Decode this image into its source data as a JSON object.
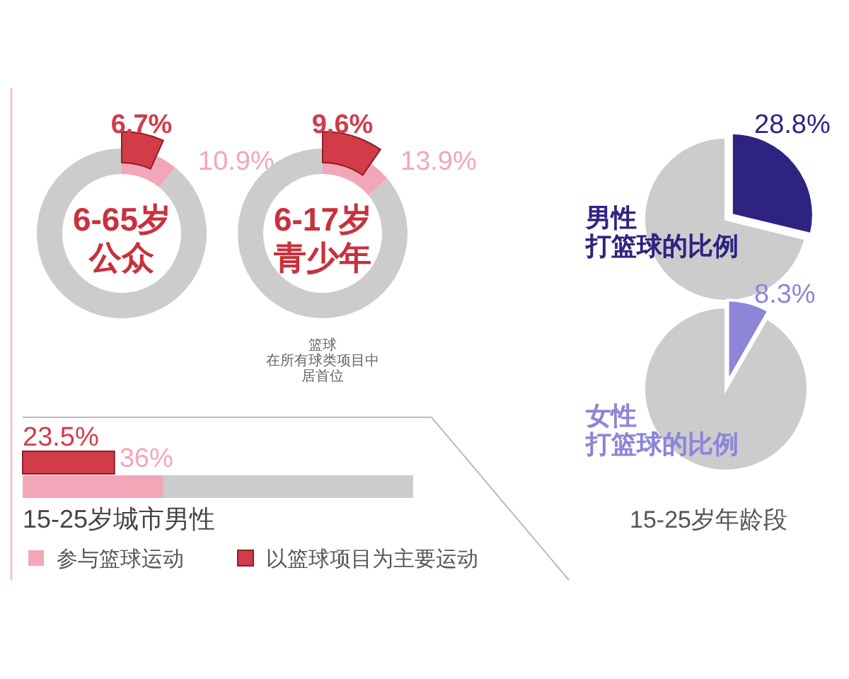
{
  "chart_data": [
    {
      "type": "donut",
      "title": "6-65岁",
      "subtitle": "公众",
      "series": [
        {
          "colors": [
            "#f2a7b8",
            "#cccccc"
          ],
          "values": [
            10.9,
            89.1
          ],
          "value_labels": [
            "10.9%",
            null
          ]
        },
        {
          "colors": [
            "#d13c48"
          ],
          "values": [
            6.7
          ],
          "value_labels": [
            "6.7%"
          ]
        }
      ]
    },
    {
      "type": "donut",
      "title": "6-17岁",
      "subtitle": "青少年",
      "series": [
        {
          "colors": [
            "#f2a7b8",
            "#cccccc"
          ],
          "values": [
            13.9,
            86.1
          ],
          "value_labels": [
            "13.9%",
            null
          ]
        },
        {
          "colors": [
            "#d13c48"
          ],
          "values": [
            9.6
          ],
          "value_labels": [
            "9.6%"
          ]
        }
      ],
      "annotations": [
        "篮球",
        "在所有球类项目中",
        "居首位"
      ]
    },
    {
      "type": "bar",
      "orientation": "horizontal",
      "categories": [
        "15-25岁城市男性"
      ],
      "xlim": [
        0,
        100
      ],
      "legend": "bottom",
      "series": [
        {
          "name": "参与篮球运动",
          "color": "#f2a7b8",
          "values": [
            36
          ],
          "value_labels": [
            "36%"
          ]
        },
        {
          "name": "以篮球项目为主要运动",
          "color": "#d13c48",
          "values": [
            23.5
          ],
          "value_labels": [
            "23.5%"
          ]
        }
      ]
    },
    {
      "type": "pie",
      "title": "男性",
      "subtitle": "打篮球的比例",
      "categories": [
        null,
        null
      ],
      "values": [
        28.8,
        71.2
      ],
      "colors": [
        "#2e2381",
        "#cccccc"
      ],
      "value_labels": [
        "28.8%",
        null
      ]
    },
    {
      "type": "pie",
      "title": "女性",
      "subtitle": "打篮球的比例",
      "categories": [
        null,
        null
      ],
      "values": [
        8.3,
        91.7
      ],
      "colors": [
        "#8c85d8",
        "#cccccc"
      ],
      "value_labels": [
        "8.3%",
        null
      ],
      "annotations": [
        "15-25岁年龄段"
      ]
    }
  ]
}
